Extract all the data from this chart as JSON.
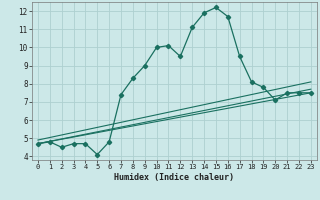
{
  "xlabel": "Humidex (Indice chaleur)",
  "bg_color": "#cce8e8",
  "line_color": "#1a7060",
  "grid_color": "#aed0d0",
  "xlim": [
    -0.5,
    23.5
  ],
  "ylim": [
    3.8,
    12.5
  ],
  "xticks": [
    0,
    1,
    2,
    3,
    4,
    5,
    6,
    7,
    8,
    9,
    10,
    11,
    12,
    13,
    14,
    15,
    16,
    17,
    18,
    19,
    20,
    21,
    22,
    23
  ],
  "yticks": [
    4,
    5,
    6,
    7,
    8,
    9,
    10,
    11,
    12
  ],
  "main_x": [
    0,
    1,
    2,
    3,
    4,
    5,
    6,
    7,
    8,
    9,
    10,
    11,
    12,
    13,
    14,
    15,
    16,
    17,
    18,
    19,
    20,
    21,
    22,
    23
  ],
  "main_y": [
    4.7,
    4.8,
    4.5,
    4.7,
    4.7,
    4.1,
    4.8,
    7.4,
    8.3,
    9.0,
    10.0,
    10.1,
    9.5,
    11.1,
    11.9,
    12.2,
    11.7,
    9.5,
    8.1,
    7.8,
    7.1,
    7.5,
    7.5,
    7.5
  ],
  "straight_lines": [
    {
      "x0": 0,
      "y0": 4.7,
      "x1": 23,
      "y1": 7.5
    },
    {
      "x0": 0,
      "y0": 4.7,
      "x1": 23,
      "y1": 7.7
    },
    {
      "x0": 0,
      "y0": 4.9,
      "x1": 23,
      "y1": 8.1
    }
  ]
}
